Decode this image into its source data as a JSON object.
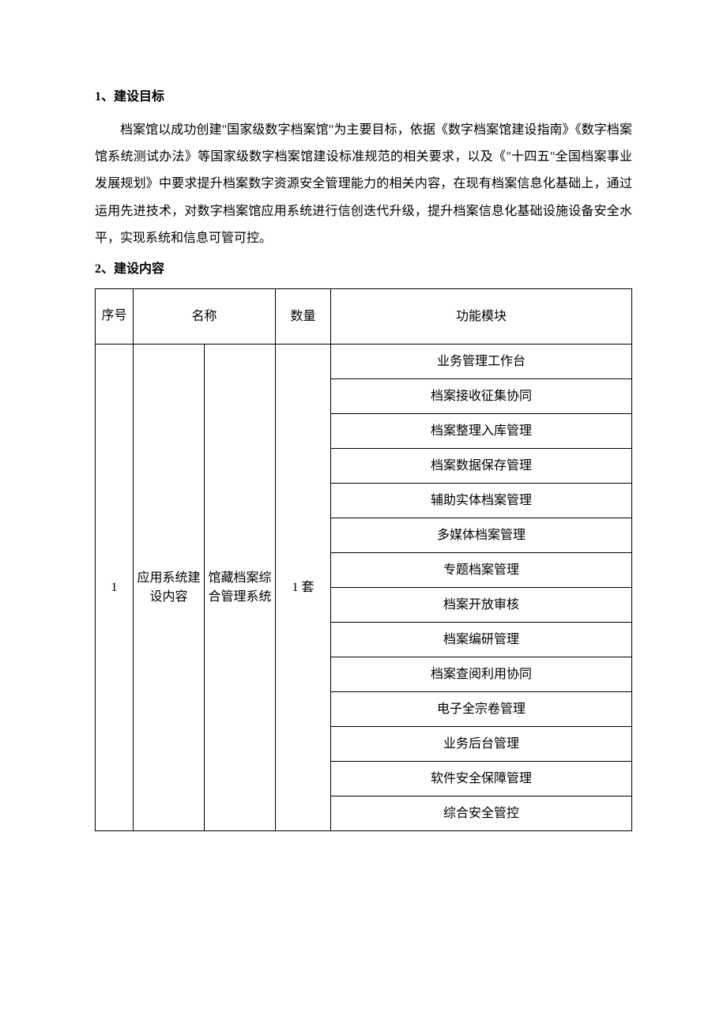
{
  "page": {
    "background_color": "#ffffff",
    "text_color": "#000000",
    "border_color": "#000000",
    "body_fontsize": 16,
    "heading_fontsize": 16
  },
  "section1": {
    "heading": "1、建设目标",
    "body": "档案馆以成功创建\"国家级数字档案馆\"为主要目标，依据《数字档案馆建设指南》《数字档案馆系统测试办法》等国家级数字档案馆建设标准规范的相关要求，以及《\"十四五\"全国档案事业发展规划》中要求提升档案数字资源安全管理能力的相关内容，在现有档案信息化基础上，通过运用先进技术，对数字档案馆应用系统进行信创迭代升级，提升档案信息化基础设施设备安全水平，实现系统和信息可管可控。"
  },
  "section2": {
    "heading": "2、建设内容"
  },
  "table": {
    "type": "table",
    "headers": {
      "seq": "序号",
      "name": "名称",
      "qty": "数量",
      "module": "功能模块"
    },
    "row": {
      "seq": "1",
      "name_a": "应用系统建设内容",
      "name_b": "馆藏档案综合管理系统",
      "qty": "1 套"
    },
    "modules": {
      "m0": "业务管理工作台",
      "m1": "档案接收征集协同",
      "m2": "档案整理入库管理",
      "m3": "档案数据保存管理",
      "m4": "辅助实体档案管理",
      "m5": "多媒体档案管理",
      "m6": "专题档案管理",
      "m7": "档案开放审核",
      "m8": "档案编研管理",
      "m9": "档案查阅利用协同",
      "m10": "电子全宗卷管理",
      "m11": "业务后台管理",
      "m12": "软件安全保障管理",
      "m13": "综合安全管控"
    },
    "module_count": 14
  }
}
